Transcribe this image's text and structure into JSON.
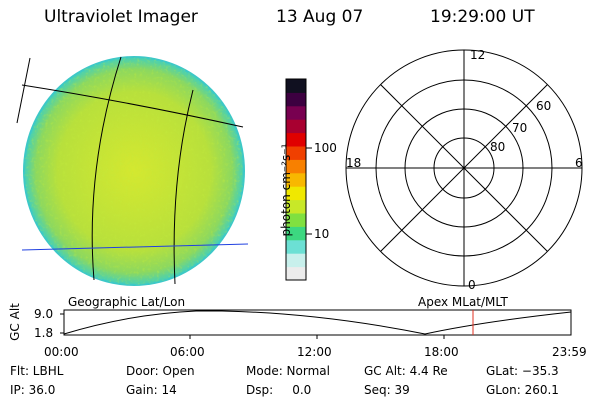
{
  "header": {
    "instrument": "Ultraviolet Imager",
    "date": "13 Aug 07",
    "time": "19:29:00 UT"
  },
  "colorbar": {
    "unit_label": "photon cm⁻²s⁻¹",
    "ticks": [
      "100",
      "10"
    ],
    "colors": [
      "#ececec",
      "#c8f0ec",
      "#6ce0d4",
      "#3cd880",
      "#80e040",
      "#c8e828",
      "#f0e800",
      "#f8b800",
      "#f88000",
      "#f04000",
      "#e00000",
      "#a80030",
      "#780050",
      "#3c0040",
      "#101020"
    ]
  },
  "left_panel": {
    "label": "Geographic Lat/Lon",
    "fill_color": "#b8e03c",
    "rim_color": "#3cc8c8",
    "grid_line_color": "#000000",
    "horizon_line_color": "#2040e0"
  },
  "right_panel": {
    "label": "Apex MLat/MLT",
    "mlt_labels": [
      "12",
      "18",
      "6",
      "0"
    ],
    "mlat_labels": [
      "60",
      "70",
      "80"
    ]
  },
  "timeline": {
    "y_axis_label": "GC Alt",
    "y_ticks": [
      "9.0",
      "1.8"
    ],
    "x_ticks": [
      "00:00",
      "06:00",
      "12:00",
      "18:00",
      "23:59"
    ],
    "current_time_marker_color": "#e03020"
  },
  "info": {
    "filter": "Flt: LBHL",
    "door": "Door: Open",
    "mode": "Mode: Normal",
    "gc_alt": "GC Alt: 4.4 Re",
    "glat": "GLat: −35.3",
    "ip": "IP: 36.0",
    "gain": "Gain: 14",
    "dsp": "Dsp:     0.0",
    "seq": "Seq: 39",
    "glon": "GLon: 260.1"
  }
}
